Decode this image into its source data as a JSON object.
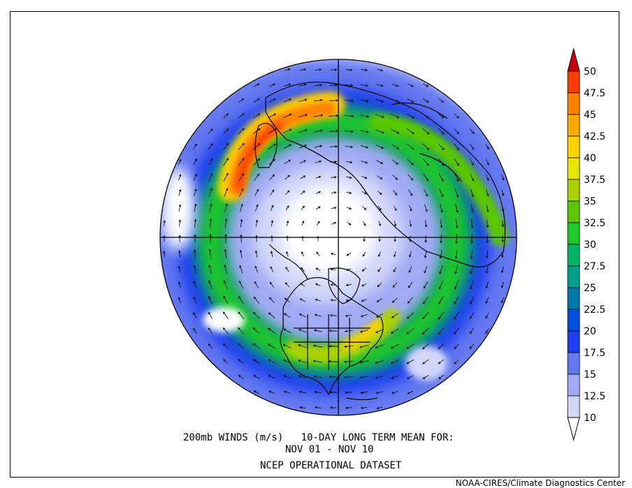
{
  "caption": {
    "line1": "200mb WINDS (m/s)   10-DAY LONG TERM MEAN FOR:",
    "line2": "NOV 01 - NOV 10",
    "line3": "NCEP OPERATIONAL DATASET"
  },
  "credit": "NOAA-CIRES/Climate Diagnostics Center",
  "map": {
    "projection": "north-polar-stereographic",
    "field": "200mb wind speed",
    "units": "m/s"
  },
  "colorbar": {
    "labels": [
      "50",
      "47.5",
      "45",
      "42.5",
      "40",
      "37.5",
      "35",
      "32.5",
      "30",
      "27.5",
      "25",
      "22.5",
      "20",
      "17.5",
      "15",
      "12.5",
      "10"
    ],
    "colors": [
      "#c8000a",
      "#ff3c00",
      "#ff8200",
      "#ffaa00",
      "#ffd200",
      "#e6e600",
      "#aad200",
      "#5ac800",
      "#1ec828",
      "#00b464",
      "#00a08c",
      "#0078aa",
      "#0050dc",
      "#1e3cf0",
      "#6478f0",
      "#a0aaf5",
      "#d2d7fa"
    ],
    "top_color": "#c8000a",
    "bottom_color": "#ffffff"
  }
}
